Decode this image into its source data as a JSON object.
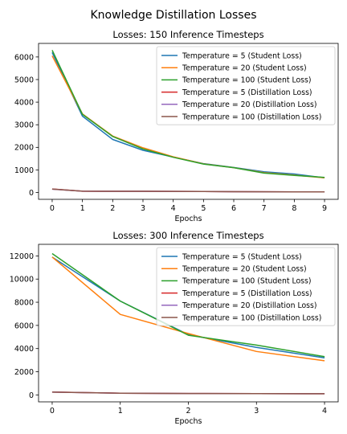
{
  "figure": {
    "suptitle": "Knowledge Distillation Losses"
  },
  "colors": {
    "Temperature = 5 (Student Loss)": "#1f77b4",
    "Temperature = 20 (Student Loss)": "#ff7f0e",
    "Temperature = 100 (Student Loss)": "#2ca02c",
    "Temperature = 5 (Distillation Loss)": "#d62728",
    "Temperature = 20 (Distillation Loss)": "#9467bd",
    "Temperature = 100 (Distillation Loss)": "#8c564b"
  },
  "chart_data": [
    {
      "type": "line",
      "title": "Losses: 150 Inference Timesteps",
      "xlabel": "Epochs",
      "ylabel": "",
      "x": [
        0,
        1,
        2,
        3,
        4,
        5,
        6,
        7,
        8,
        9
      ],
      "xlim": [
        -0.45,
        9.45
      ],
      "ylim": [
        -300,
        6600
      ],
      "xticks": [
        0,
        1,
        2,
        3,
        4,
        5,
        6,
        7,
        8,
        9
      ],
      "yticks": [
        0,
        1000,
        2000,
        3000,
        4000,
        5000,
        6000
      ],
      "legend": "top-right",
      "grid": false,
      "series": [
        {
          "name": "Temperature = 5 (Student Loss)",
          "values": [
            6200,
            3380,
            2350,
            1870,
            1570,
            1280,
            1110,
            920,
            820,
            650
          ]
        },
        {
          "name": "Temperature = 20 (Student Loss)",
          "values": [
            6050,
            3480,
            2500,
            1980,
            1580,
            1270,
            1100,
            880,
            770,
            650
          ]
        },
        {
          "name": "Temperature = 100 (Student Loss)",
          "values": [
            6300,
            3460,
            2480,
            1930,
            1560,
            1260,
            1100,
            860,
            760,
            670
          ]
        },
        {
          "name": "Temperature = 5 (Distillation Loss)",
          "values": [
            160,
            60,
            55,
            55,
            50,
            45,
            40,
            35,
            30,
            30
          ]
        },
        {
          "name": "Temperature = 20 (Distillation Loss)",
          "values": [
            150,
            60,
            55,
            55,
            50,
            45,
            40,
            35,
            30,
            30
          ]
        },
        {
          "name": "Temperature = 100 (Distillation Loss)",
          "values": [
            155,
            60,
            55,
            55,
            50,
            45,
            40,
            35,
            30,
            30
          ]
        }
      ]
    },
    {
      "type": "line",
      "title": "Losses: 300 Inference Timesteps",
      "xlabel": "Epochs",
      "ylabel": "",
      "x": [
        0,
        1,
        2,
        3,
        4
      ],
      "xlim": [
        -0.2,
        4.2
      ],
      "ylim": [
        -600,
        13000
      ],
      "xticks": [
        0,
        1,
        2,
        3,
        4
      ],
      "yticks": [
        0,
        2000,
        4000,
        6000,
        8000,
        10000,
        12000
      ],
      "legend": "top-right",
      "grid": false,
      "series": [
        {
          "name": "Temperature = 5 (Student Loss)",
          "values": [
            11900,
            8100,
            5200,
            4100,
            3200
          ]
        },
        {
          "name": "Temperature = 20 (Student Loss)",
          "values": [
            11900,
            6950,
            5300,
            3750,
            2950
          ]
        },
        {
          "name": "Temperature = 100 (Student Loss)",
          "values": [
            12200,
            8100,
            5150,
            4300,
            3300
          ]
        },
        {
          "name": "Temperature = 5 (Distillation Loss)",
          "values": [
            250,
            150,
            120,
            110,
            100
          ]
        },
        {
          "name": "Temperature = 20 (Distillation Loss)",
          "values": [
            240,
            150,
            120,
            110,
            100
          ]
        },
        {
          "name": "Temperature = 100 (Distillation Loss)",
          "values": [
            245,
            150,
            120,
            110,
            100
          ]
        }
      ]
    }
  ]
}
